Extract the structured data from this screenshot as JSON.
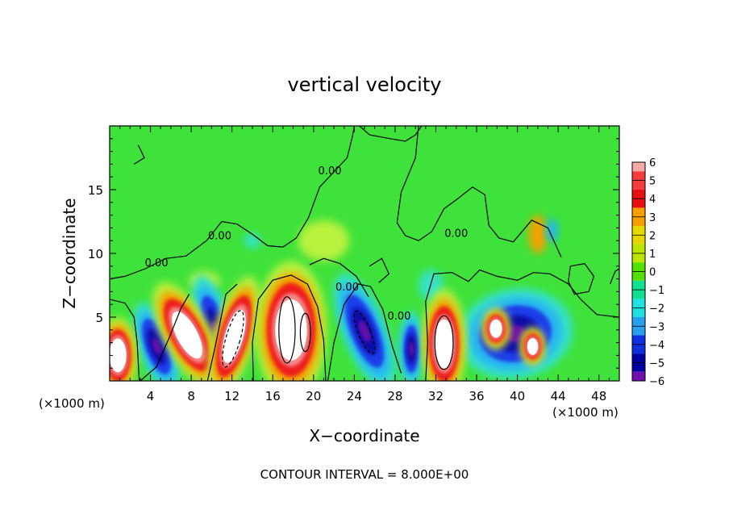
{
  "chart_data": {
    "type": "heatmap",
    "title": "vertical velocity",
    "xlabel": "X−coordinate",
    "ylabel": "Z−coordinate",
    "x_unit_left": "(×1000 m)",
    "x_unit_right": "(×1000 m)",
    "footer": "CONTOUR INTERVAL = 8.000E+00",
    "xlim": [
      0,
      50
    ],
    "ylim": [
      0,
      20
    ],
    "x_ticks": [
      4,
      8,
      12,
      16,
      20,
      24,
      28,
      32,
      36,
      40,
      44,
      48
    ],
    "x_tick_labels": [
      "4",
      "8",
      "12",
      "16",
      "20",
      "24",
      "28",
      "32",
      "36",
      "40",
      "44",
      "48"
    ],
    "y_ticks": [
      5,
      10,
      15
    ],
    "y_tick_labels": [
      "5",
      "10",
      "15"
    ],
    "contour_labels": [
      {
        "text": "0.00",
        "x": 4.6,
        "y": 9.0
      },
      {
        "text": "0.00",
        "x": 10.8,
        "y": 11.1
      },
      {
        "text": "0.00",
        "x": 21.6,
        "y": 16.2
      },
      {
        "text": "0.00",
        "x": 23.3,
        "y": 7.1
      },
      {
        "text": "0.00",
        "x": 28.4,
        "y": 4.8
      },
      {
        "text": "0.00",
        "x": 34.0,
        "y": 11.3
      }
    ],
    "colorbar": {
      "levels": [
        6,
        5,
        4,
        3,
        2,
        1,
        0,
        -1,
        -2,
        -3,
        -4,
        -5,
        -6
      ],
      "labels": [
        "6",
        "5",
        "4",
        "3",
        "2",
        "1",
        "0",
        "−1",
        "−2",
        "−3",
        "−4",
        "−5",
        "−6"
      ],
      "colors": [
        "#f7a8a8",
        "#f53c3c",
        "#e81010",
        "#f5a000",
        "#e6d800",
        "#bce600",
        "#52e000",
        "#10e090",
        "#20e0e0",
        "#28a0f0",
        "#1030e0",
        "#0000a0",
        "#7010b0"
      ]
    },
    "field_colors": {
      "background": "#3fe23a",
      "light_green": "#7aee3e",
      "yellow_green": "#b9f23e",
      "cyan": "#35e2c8",
      "sky_blue": "#26b4f2",
      "blue": "#1b3ce8",
      "navy": "#0d0da8",
      "purple": "#6a10aa",
      "red": "#ee1a1a",
      "light_red": "#f48a8a",
      "orange": "#f5a000",
      "white": "#ffffff"
    },
    "updrafts": [
      {
        "x": 0.8,
        "y": 2.0,
        "rx": 1.4,
        "ry": 2.2,
        "rot": 0
      },
      {
        "x": 7.6,
        "y": 3.6,
        "rx": 1.7,
        "ry": 3.4,
        "rot": -28
      },
      {
        "x": 12.2,
        "y": 3.5,
        "rx": 1.5,
        "ry": 3.6,
        "rot": 16
      },
      {
        "x": 17.8,
        "y": 4.0,
        "rx": 2.6,
        "ry": 4.0,
        "rot": 0
      },
      {
        "x": 32.8,
        "y": 2.9,
        "rx": 1.6,
        "ry": 3.2,
        "rot": 0
      },
      {
        "x": 37.9,
        "y": 4.1,
        "rx": 1.0,
        "ry": 1.2,
        "rot": 0
      },
      {
        "x": 41.5,
        "y": 2.7,
        "rx": 0.9,
        "ry": 1.1,
        "rot": 0
      }
    ],
    "downdrafts": [
      {
        "x": 4.6,
        "y": 2.7,
        "rx": 1.3,
        "ry": 2.7,
        "rot": -20
      },
      {
        "x": 10.4,
        "y": 3.9,
        "rx": 1.3,
        "ry": 3.4,
        "rot": -16
      },
      {
        "x": 25.0,
        "y": 3.9,
        "rx": 1.6,
        "ry": 3.6,
        "rot": -22
      },
      {
        "x": 29.6,
        "y": 2.5,
        "rx": 0.9,
        "ry": 2.2,
        "rot": 0
      },
      {
        "x": 39.8,
        "y": 3.7,
        "rx": 4.2,
        "ry": 2.6,
        "rot": -10
      }
    ],
    "weak_features": [
      {
        "x": 21.0,
        "y": 11.0,
        "rx": 2.5,
        "ry": 1.6,
        "color": "yellow_green"
      },
      {
        "x": 42.0,
        "y": 11.5,
        "rx": 0.9,
        "ry": 1.5,
        "color": "orange"
      },
      {
        "x": 43.4,
        "y": 11.8,
        "rx": 0.6,
        "ry": 0.9,
        "color": "sky_blue"
      },
      {
        "x": 40.2,
        "y": 5.5,
        "rx": 0.9,
        "ry": 1.1,
        "color": "orange"
      },
      {
        "x": 31.5,
        "y": 7.5,
        "rx": 1.2,
        "ry": 1.2,
        "color": "cyan"
      },
      {
        "x": 9.3,
        "y": 7.8,
        "rx": 1.5,
        "ry": 0.8,
        "color": "yellow_green"
      },
      {
        "x": 14.0,
        "y": 11.0,
        "rx": 0.8,
        "ry": 0.6,
        "color": "cyan"
      }
    ]
  }
}
